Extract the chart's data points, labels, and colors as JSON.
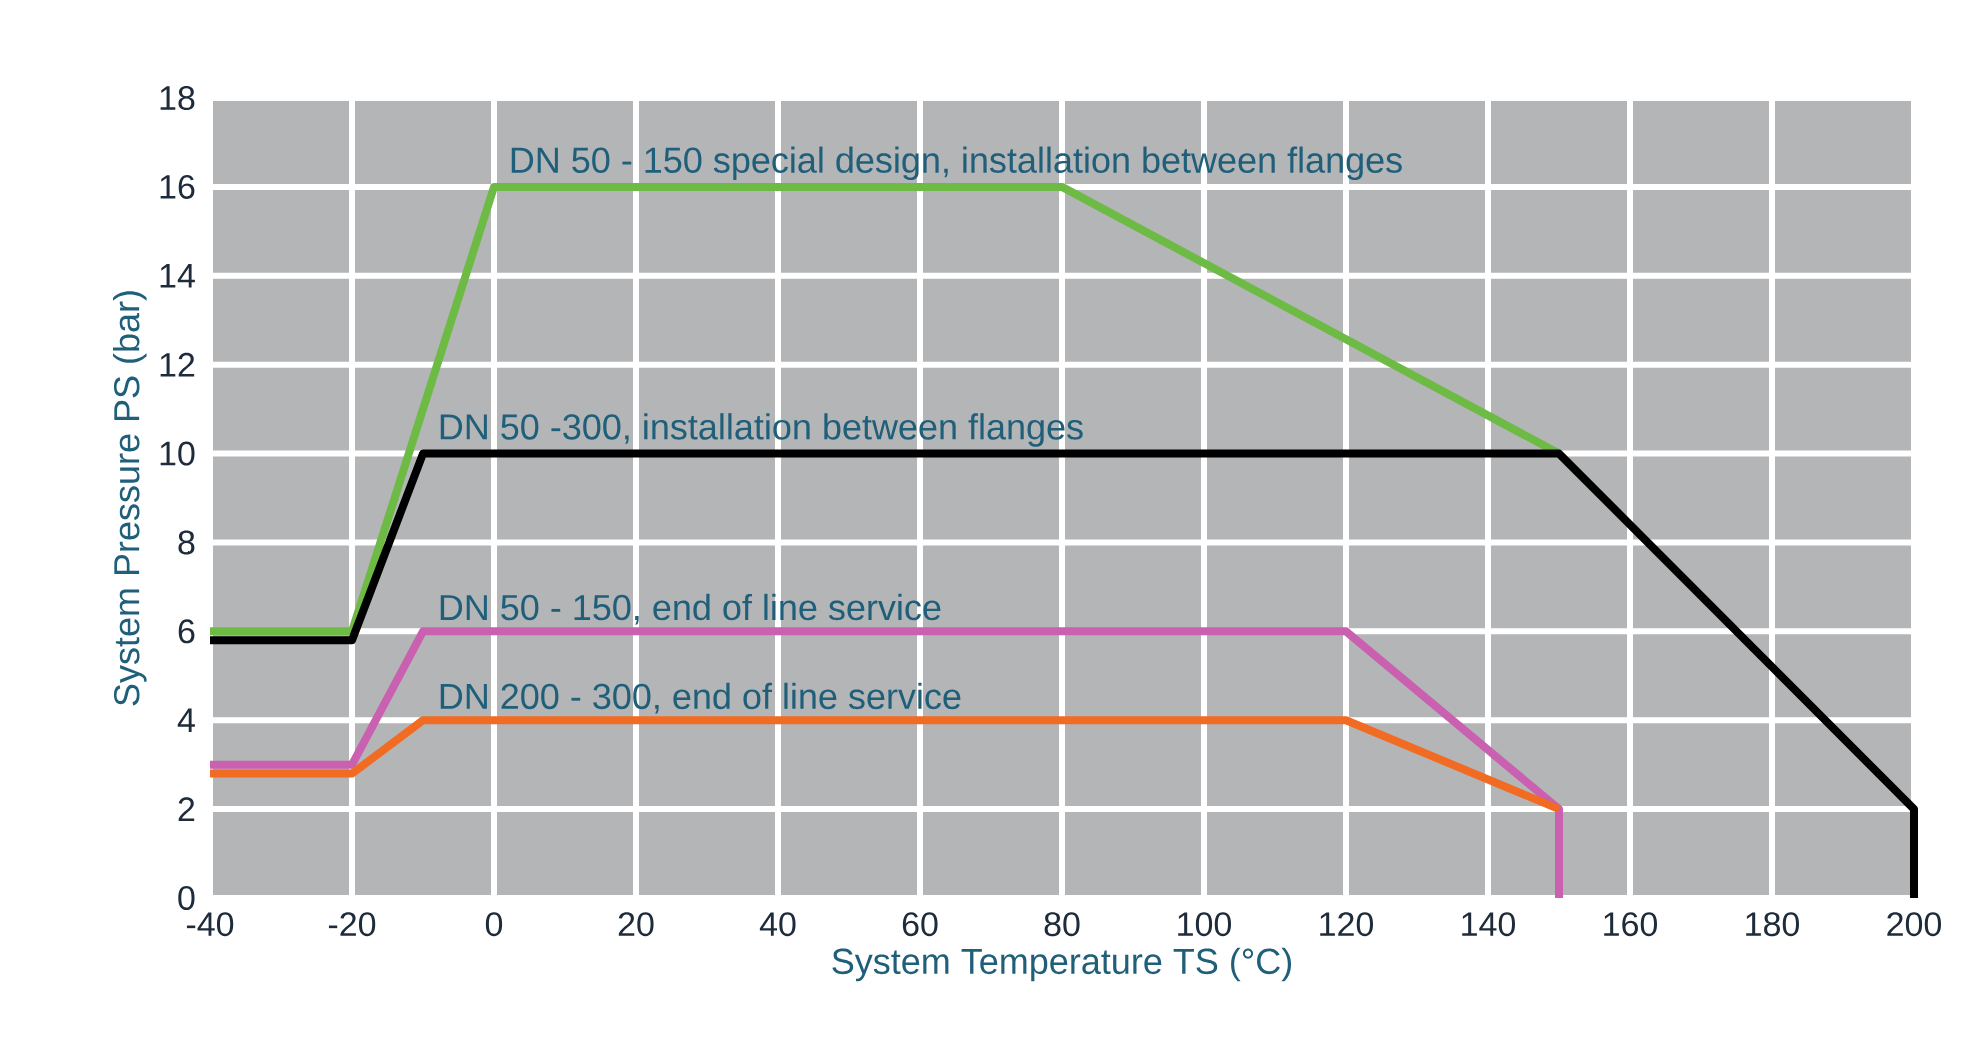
{
  "chart_data": {
    "type": "line",
    "xlabel": "System Temperature TS (°C)",
    "ylabel": "System Pressure PS (bar)",
    "xlim": [
      -40,
      200
    ],
    "xticks": [
      -40,
      -20,
      0,
      20,
      40,
      60,
      80,
      100,
      120,
      140,
      160,
      180,
      200
    ],
    "ylim": [
      0,
      18
    ],
    "yticks": [
      0,
      2,
      4,
      6,
      8,
      10,
      12,
      14,
      16,
      18
    ],
    "grid": true,
    "series": [
      {
        "name": "DN 50 - 150 special design, installation between flanges",
        "color": "#6dbb45",
        "x": [
          -40,
          -20,
          0,
          80,
          150
        ],
        "values": [
          6,
          6,
          16,
          16,
          10
        ]
      },
      {
        "name": "DN 50 -300, installation between flanges",
        "color": "#000000",
        "x": [
          -40,
          -20,
          -10,
          150,
          200,
          200
        ],
        "values": [
          5.8,
          5.8,
          10,
          10,
          2,
          0
        ]
      },
      {
        "name": "DN 50 - 150, end of line service",
        "color": "#c961b0",
        "x": [
          -40,
          -20,
          -10,
          120,
          150,
          150
        ],
        "values": [
          3,
          3,
          6,
          6,
          2,
          0
        ]
      },
      {
        "name": "DN 200 - 300, end of line service",
        "color": "#f26b22",
        "x": [
          -40,
          -20,
          -10,
          120,
          150
        ],
        "values": [
          2.8,
          2.8,
          4,
          4,
          2
        ]
      }
    ]
  }
}
